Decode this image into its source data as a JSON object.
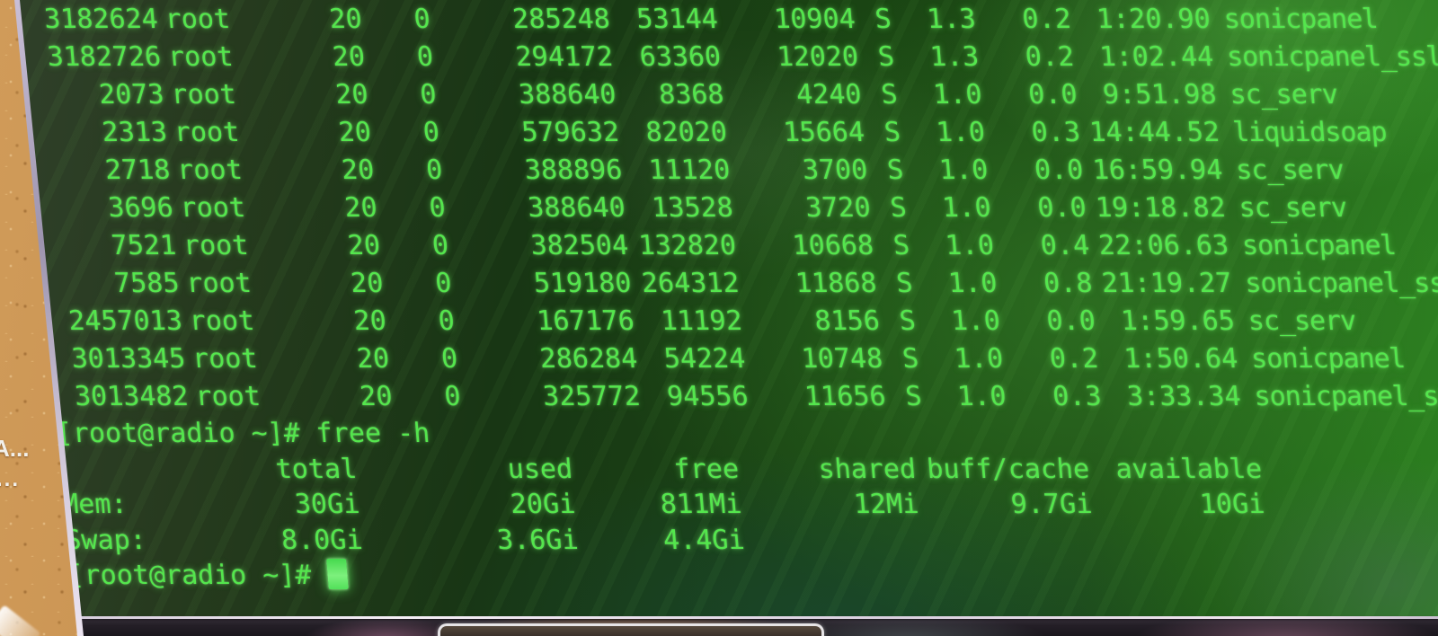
{
  "colors": {
    "text_green": "#54e64d",
    "cursor_green": "#52e05a",
    "screen_dark_green": "#183614",
    "screen_bright_green": "#2a7d1e",
    "wall_tan": "#c99051",
    "bezel_dark": "#241f27"
  },
  "top_output": {
    "rows": [
      {
        "pid": "3182624",
        "user": "root",
        "pr": "20",
        "ni": "0",
        "virt": "285248",
        "res": "53144",
        "shr": "10904",
        "s": "S",
        "cpu": "1.3",
        "mem": "0.2",
        "time": "1:20.90",
        "command": "sonicpanel"
      },
      {
        "pid": "3182726",
        "user": "root",
        "pr": "20",
        "ni": "0",
        "virt": "294172",
        "res": "63360",
        "shr": "12020",
        "s": "S",
        "cpu": "1.3",
        "mem": "0.2",
        "time": "1:02.44",
        "command": "sonicpanel_ssl"
      },
      {
        "pid": "2073",
        "user": "root",
        "pr": "20",
        "ni": "0",
        "virt": "388640",
        "res": "8368",
        "shr": "4240",
        "s": "S",
        "cpu": "1.0",
        "mem": "0.0",
        "time": "9:51.98",
        "command": "sc_serv"
      },
      {
        "pid": "2313",
        "user": "root",
        "pr": "20",
        "ni": "0",
        "virt": "579632",
        "res": "82020",
        "shr": "15664",
        "s": "S",
        "cpu": "1.0",
        "mem": "0.3",
        "time": "14:44.52",
        "command": "liquidsoap"
      },
      {
        "pid": "2718",
        "user": "root",
        "pr": "20",
        "ni": "0",
        "virt": "388896",
        "res": "11120",
        "shr": "3700",
        "s": "S",
        "cpu": "1.0",
        "mem": "0.0",
        "time": "16:59.94",
        "command": "sc_serv"
      },
      {
        "pid": "3696",
        "user": "root",
        "pr": "20",
        "ni": "0",
        "virt": "388640",
        "res": "13528",
        "shr": "3720",
        "s": "S",
        "cpu": "1.0",
        "mem": "0.0",
        "time": "19:18.82",
        "command": "sc_serv"
      },
      {
        "pid": "7521",
        "user": "root",
        "pr": "20",
        "ni": "0",
        "virt": "382504",
        "res": "132820",
        "shr": "10668",
        "s": "S",
        "cpu": "1.0",
        "mem": "0.4",
        "time": "22:06.63",
        "command": "sonicpanel"
      },
      {
        "pid": "7585",
        "user": "root",
        "pr": "20",
        "ni": "0",
        "virt": "519180",
        "res": "264312",
        "shr": "11868",
        "s": "S",
        "cpu": "1.0",
        "mem": "0.8",
        "time": "21:19.27",
        "command": "sonicpanel_ssl"
      },
      {
        "pid": "2457013",
        "user": "root",
        "pr": "20",
        "ni": "0",
        "virt": "167176",
        "res": "11192",
        "shr": "8156",
        "s": "S",
        "cpu": "1.0",
        "mem": "0.0",
        "time": "1:59.65",
        "command": "sc_serv"
      },
      {
        "pid": "3013345",
        "user": "root",
        "pr": "20",
        "ni": "0",
        "virt": "286284",
        "res": "54224",
        "shr": "10748",
        "s": "S",
        "cpu": "1.0",
        "mem": "0.2",
        "time": "1:50.64",
        "command": "sonicpanel"
      },
      {
        "pid": "3013482",
        "user": "root",
        "pr": "20",
        "ni": "0",
        "virt": "325772",
        "res": "94556",
        "shr": "11656",
        "s": "S",
        "cpu": "1.0",
        "mem": "0.3",
        "time": "3:33.34",
        "command": "sonicpanel_ssl"
      }
    ]
  },
  "shell": {
    "prompt": "[root@radio ~]#",
    "command": "free -h"
  },
  "free_output": {
    "headers": {
      "total": "total",
      "used": "used",
      "free": "free",
      "shared": "shared",
      "buff_cache": "buff/cache",
      "available": "available"
    },
    "mem": {
      "label": "Mem:",
      "total": "30Gi",
      "used": "20Gi",
      "free": "811Mi",
      "shared": "12Mi",
      "buff_cache": "9.7Gi",
      "available": "10Gi"
    },
    "swap": {
      "label": "Swap:",
      "total": "8.0Gi",
      "used": "3.6Gi",
      "free": "4.4Gi"
    }
  },
  "wall": {
    "fragment_top": "A...",
    "fragment_bottom": "..."
  }
}
